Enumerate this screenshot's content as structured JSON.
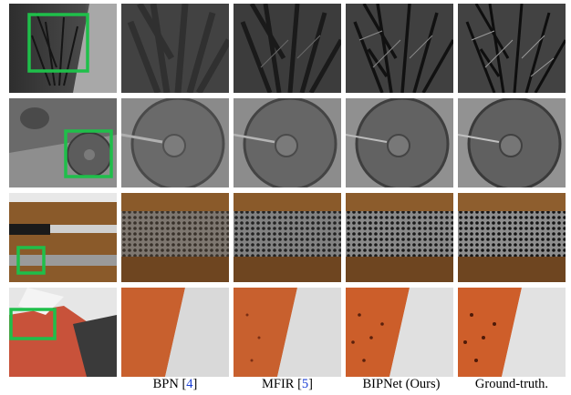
{
  "figure": {
    "columns": [
      {
        "name": "BPN",
        "ref": "4"
      },
      {
        "name": "MFIR",
        "ref": "5"
      },
      {
        "name": "BIPNet (Ours)",
        "ref": ""
      },
      {
        "name": "Ground-truth.",
        "ref": ""
      }
    ],
    "rows": [
      "plant",
      "coin",
      "knife",
      "shoe"
    ],
    "highlight_color": "#1fbf4a"
  }
}
